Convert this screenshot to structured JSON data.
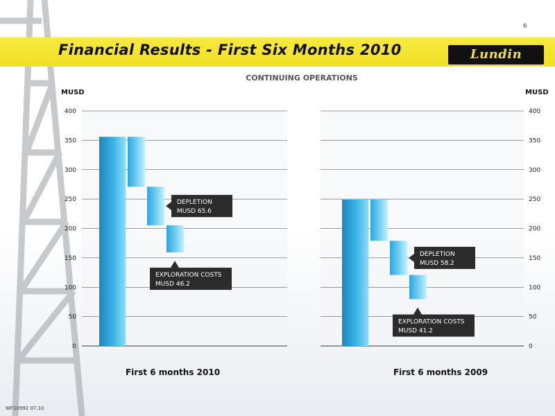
{
  "slide": {
    "page_number": "6",
    "title": "Financial Results - First Six Months 2010",
    "logo_text": "Lundin",
    "subtitle": "CONTINUING OPERATIONS",
    "footer_code": "WF10992 07.10",
    "unit_left": "MUSD",
    "unit_right": "MUSD"
  },
  "colors": {
    "banner": "#f2e22c",
    "bar_dark": "#1f8fc2",
    "bar_light": "#86d9f5",
    "callout": "#2b2b2b"
  },
  "chart_data": [
    {
      "type": "bar",
      "variant": "waterfall",
      "category": "First 6 months 2010",
      "ylim": [
        0,
        400
      ],
      "yticks": [
        0,
        50,
        100,
        150,
        200,
        250,
        300,
        350,
        400
      ],
      "ylabel": "MUSD",
      "grid": true,
      "axis_side": "left",
      "start_total": 356,
      "steps": [
        {
          "label": "",
          "value": -85
        },
        {
          "label": "DEPLETION MUSD 65.6",
          "value": -65.6
        },
        {
          "label": "EXPLORATION COSTS MUSD 46.2",
          "value": -46.2
        }
      ]
    },
    {
      "type": "bar",
      "variant": "waterfall",
      "category": "First 6 months 2009",
      "ylim": [
        0,
        400
      ],
      "yticks": [
        0,
        50,
        100,
        150,
        200,
        250,
        300,
        350,
        400
      ],
      "ylabel": "MUSD",
      "grid": true,
      "axis_side": "right",
      "start_total": 249,
      "steps": [
        {
          "label": "",
          "value": -70
        },
        {
          "label": "DEPLETION MUSD 58.2",
          "value": -58.2
        },
        {
          "label": "EXPLORATION COSTS MUSD 41.2",
          "value": -41.2
        }
      ]
    }
  ]
}
